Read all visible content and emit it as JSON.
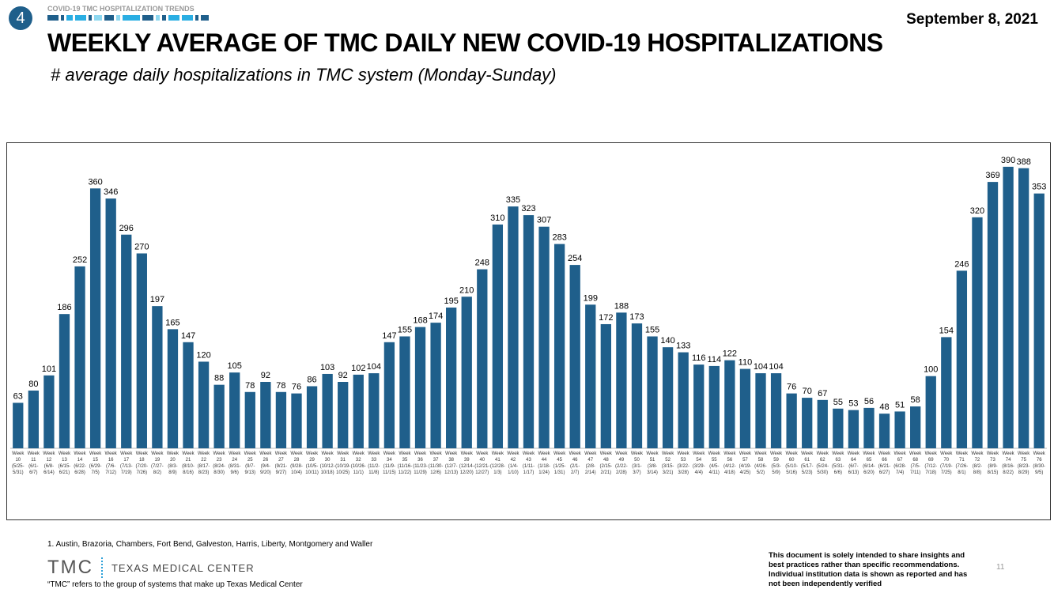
{
  "header": {
    "section_number": "4",
    "section_title": "COVID-19 TMC HOSPITALIZATION TRENDS",
    "date": "September 8, 2021",
    "title": "WEEKLY AVERAGE OF TMC DAILY NEW COVID-19 HOSPITALIZATIONS",
    "subtitle": "# average daily hospitalizations in TMC system (Monday-Sunday)",
    "stripe_colors": [
      "#1F5F8B",
      "#1F5F8B",
      "#2AAEE3",
      "#2AAEE3",
      "#1F5F8B",
      "#8ED8F0",
      "#1F5F8B",
      "#8ED8F0",
      "#2AAEE3",
      "#1F5F8B",
      "#8ED8F0",
      "#1F5F8B",
      "#2AAEE3",
      "#2AAEE3",
      "#1F5F8B",
      "#1F5F8B"
    ]
  },
  "chart_data": {
    "type": "bar",
    "bar_color": "#1F5F8B",
    "week_prefix": "Week",
    "weeks": [
      10,
      11,
      12,
      13,
      14,
      15,
      16,
      17,
      18,
      19,
      20,
      21,
      22,
      23,
      24,
      25,
      26,
      27,
      28,
      29,
      30,
      31,
      32,
      33,
      34,
      35,
      36,
      37,
      38,
      39,
      40,
      41,
      42,
      43,
      44,
      45,
      46,
      47,
      48,
      49,
      50,
      51,
      52,
      53,
      54,
      55,
      56,
      57,
      58,
      59,
      60,
      61,
      62,
      63,
      64,
      65,
      66,
      67,
      68,
      69,
      70,
      71,
      72,
      73,
      74,
      75,
      76
    ],
    "date_ranges": [
      "(5/25-5/31)",
      "(6/1-6/7)",
      "(6/8-6/14)",
      "(6/15-6/21)",
      "(6/22-6/28)",
      "(6/29-7/5)",
      "(7/6-7/12)",
      "(7/13-7/19)",
      "(7/20-7/26)",
      "(7/27-8/2)",
      "(8/3-8/9)",
      "(8/10-8/16)",
      "(8/17-8/23)",
      "(8/24-8/30)",
      "(8/31-9/6)",
      "(9/7-9/13)",
      "(9/4-9/20)",
      "(9/21-9/27)",
      "(9/28-10/4)",
      "(10/5-10/11)",
      "(10/12-10/18)",
      "(10/19-10/25)",
      "(10/26-11/1)",
      "(11/2-11/8)",
      "(11/9-11/15)",
      "(11/16-11/22)",
      "(11/23-11/29)",
      "(11/30-12/6)",
      "(12/7-12/13)",
      "(12/14-12/20)",
      "(12/21-12/27)",
      "(12/28-1/3)",
      "(1/4-1/10)",
      "(1/11-1/17)",
      "(1/18-1/24)",
      "(1/25-1/31)",
      "(2/1-2/7)",
      "(2/8-2/14)",
      "(2/15-2/21)",
      "(2/22-2/28)",
      "(3/1-3/7)",
      "(3/8-3/14)",
      "(3/15-3/21)",
      "(3/22-3/28)",
      "(3/29-4/4)",
      "(4/5-4/11)",
      "(4/12-4/18)",
      "(4/19-4/25)",
      "(4/26-5/2)",
      "(5/3-5/9)",
      "(5/10-5/16)",
      "(5/17-5/23)",
      "(5/24-5/30)",
      "(5/31-6/6)",
      "(6/7-6/13)",
      "(6/14-6/20)",
      "(6/21-6/27)",
      "(6/28-7/4)",
      "(7/5-7/11)",
      "(7/12-7/18)",
      "(7/19-7/25)",
      "(7/26-8/1)",
      "(8/2-8/8)",
      "(8/9-8/15)",
      "(8/16-8/22)",
      "(8/23-8/29)",
      "(8/30-9/5)"
    ],
    "values": [
      63,
      80,
      101,
      186,
      252,
      360,
      346,
      296,
      270,
      197,
      165,
      147,
      120,
      88,
      105,
      78,
      92,
      78,
      76,
      86,
      103,
      92,
      102,
      104,
      147,
      155,
      168,
      174,
      195,
      210,
      248,
      310,
      335,
      323,
      307,
      283,
      254,
      199,
      172,
      188,
      173,
      155,
      140,
      133,
      116,
      114,
      122,
      110,
      104,
      104,
      76,
      70,
      67,
      55,
      53,
      56,
      48,
      51,
      58,
      100,
      154,
      246,
      320,
      369,
      390,
      388,
      353
    ],
    "ylim": [
      0,
      420
    ],
    "grid": false,
    "data_labels": true
  },
  "footer": {
    "footnote": "1. Austin, Brazoria, Chambers, Fort Bend, Galveston, Harris, Liberty, Montgomery and Waller",
    "logo_mark": "TMC",
    "logo_text": "TEXAS MEDICAL CENTER",
    "tmc_note": "“TMC” refers to the group of systems that make up Texas Medical Center",
    "disclaimer": "This document is solely intended to share insights and best practices rather than specific recommendations. Individual institution data is shown as reported and has not been independently verified",
    "page_number": "11"
  }
}
